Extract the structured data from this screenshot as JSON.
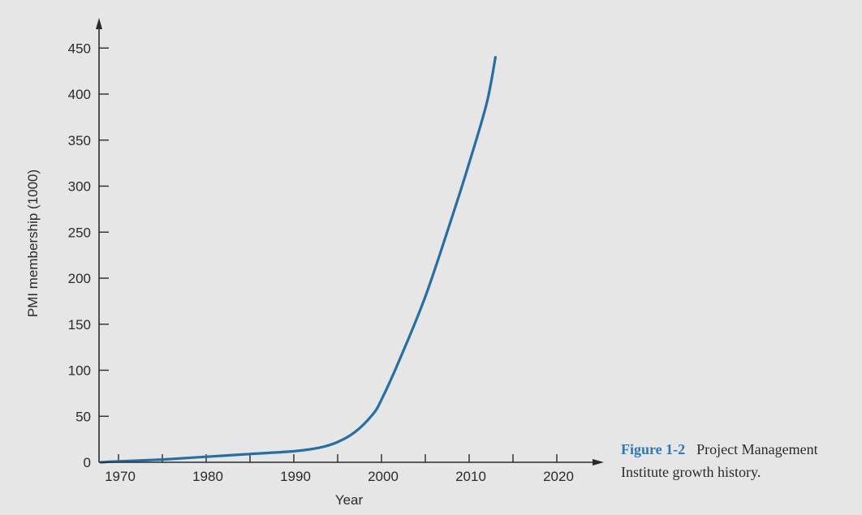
{
  "figure": {
    "caption_label": "Figure 1-2",
    "caption_text": "Project Management Institute growth history."
  },
  "colors": {
    "line": "#2470a6",
    "caption_label": "#2a7ab8",
    "axis": "#2a2a2a"
  },
  "chart_data": {
    "type": "line",
    "title": "",
    "xlabel": "Year",
    "ylabel": "PMI membership (1000)",
    "xlim": [
      1967.5,
      2024
    ],
    "ylim": [
      0,
      470
    ],
    "x_ticks_labeled": [
      1970,
      1980,
      1990,
      2000,
      2010,
      2020
    ],
    "x_ticks_minor": [
      1975,
      1985,
      1995,
      2005,
      2015
    ],
    "y_ticks": [
      0,
      50,
      100,
      150,
      200,
      250,
      300,
      350,
      400,
      450
    ],
    "grid": false,
    "legend": "none",
    "series": [
      {
        "x": [
          1968,
          1970,
          1975,
          1980,
          1985,
          1990,
          1993,
          1995,
          1997,
          1999,
          2000,
          2002,
          2005,
          2008,
          2010,
          2012,
          2013
        ],
        "y": [
          0,
          1,
          3,
          6,
          9,
          12,
          16,
          22,
          33,
          52,
          68,
          110,
          180,
          265,
          325,
          390,
          440
        ]
      }
    ]
  }
}
